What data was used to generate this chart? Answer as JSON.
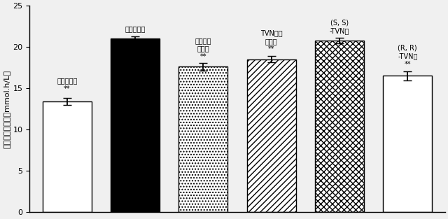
{
  "values": [
    13.4,
    21.0,
    17.6,
    18.5,
    20.8,
    16.5
  ],
  "errors": [
    0.4,
    0.3,
    0.45,
    0.4,
    0.35,
    0.55
  ],
  "ylabel": "耕糖能曲線面積（mmol.h/L）",
  "ylim": [
    0,
    25
  ],
  "yticks": [
    0,
    5,
    10,
    15,
    20,
    25
  ],
  "bar_width": 0.72,
  "facecolors": [
    "white",
    "black",
    "white",
    "white",
    "white",
    "white"
  ],
  "edgecolors": [
    "black",
    "black",
    "black",
    "black",
    "black",
    "black"
  ],
  "hatch_patterns": [
    "",
    "////",
    "....",
    "////",
    "xxxx",
    "~~~~"
  ],
  "bar_labels": [
    "空白対照組",
    "陰性対照組",
    "アカルボ\nース組",
    "TVNラセ\nミ体組",
    "(S, S)\n-TVN組",
    "(R, R)\n-TVN組"
  ],
  "sig_labels": [
    "**",
    null,
    "**",
    "**",
    null,
    "**"
  ],
  "background_color": "#f0f0f0",
  "fig_width": 6.4,
  "fig_height": 3.13
}
